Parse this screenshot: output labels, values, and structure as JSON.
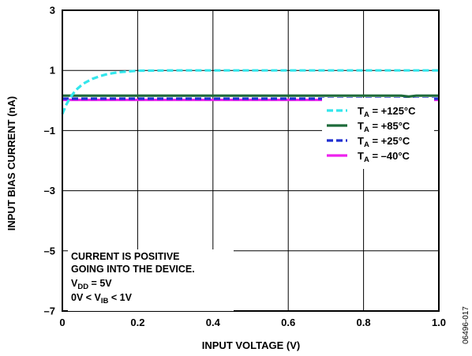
{
  "chart_data": {
    "type": "line",
    "xlabel": "INPUT VOLTAGE (V)",
    "ylabel": "INPUT BIAS CURRENT (nA)",
    "xlim": [
      0,
      1.0
    ],
    "ylim": [
      -7,
      3
    ],
    "x_ticks": [
      {
        "value": 0,
        "label": "0"
      },
      {
        "value": 0.2,
        "label": "0.2"
      },
      {
        "value": 0.4,
        "label": "0.4"
      },
      {
        "value": 0.6,
        "label": "0.6"
      },
      {
        "value": 0.8,
        "label": "0.8"
      },
      {
        "value": 1.0,
        "label": "1.0"
      }
    ],
    "y_ticks": [
      {
        "value": 3,
        "label": "3"
      },
      {
        "value": 1,
        "label": "1"
      },
      {
        "value": -1,
        "label": "–1"
      },
      {
        "value": -3,
        "label": "–3"
      },
      {
        "value": -5,
        "label": "–5"
      },
      {
        "value": -7,
        "label": "–7"
      }
    ],
    "grid": true,
    "legend_position": "right",
    "series": [
      {
        "name": "TA = +125°C",
        "label_main": "T",
        "label_sub": "A",
        "label_rest": " = +125°C",
        "color": "#33e6ec",
        "dash": "dashed",
        "x": [
          0,
          0.01,
          0.02,
          0.03,
          0.04,
          0.05,
          0.06,
          0.08,
          0.1,
          0.12,
          0.15,
          0.2,
          0.3,
          0.4,
          0.5,
          0.6,
          0.7,
          0.8,
          0.9,
          1.0
        ],
        "y": [
          -0.45,
          -0.15,
          0.08,
          0.25,
          0.39,
          0.5,
          0.59,
          0.72,
          0.81,
          0.88,
          0.94,
          0.99,
          1.0,
          1.0,
          1.0,
          1.0,
          1.0,
          1.0,
          1.0,
          1.0
        ]
      },
      {
        "name": "TA = +85°C",
        "label_main": "T",
        "label_sub": "A",
        "label_rest": " = +85°C",
        "color": "#1e6b3a",
        "dash": "solid",
        "x": [
          0,
          0.2,
          0.4,
          0.6,
          0.8,
          0.9,
          0.92,
          0.94,
          1.0
        ],
        "y": [
          0.16,
          0.16,
          0.16,
          0.16,
          0.16,
          0.16,
          0.13,
          0.16,
          0.16
        ]
      },
      {
        "name": "TA = +25°C",
        "label_main": "T",
        "label_sub": "A",
        "label_rest": " = +25°C",
        "color": "#1f2fd1",
        "dash": "dashed",
        "x": [
          0,
          0.2,
          0.4,
          0.6,
          0.8,
          1.0
        ],
        "y": [
          0.06,
          0.06,
          0.06,
          0.06,
          0.06,
          0.06
        ]
      },
      {
        "name": "TA = –40°C",
        "label_main": "T",
        "label_sub": "A",
        "label_rest": " = –40°C",
        "color": "#ee22ee",
        "dash": "solid",
        "x": [
          0,
          0.2,
          0.4,
          0.6,
          0.8,
          1.0
        ],
        "y": [
          0.02,
          0.02,
          0.02,
          0.02,
          0.02,
          0.02
        ]
      }
    ],
    "annotation": {
      "line1": "CURRENT IS POSITIVE",
      "line2": "GOING INTO THE DEVICE.",
      "line3_main": "V",
      "line3_sub": "DD",
      "line3_rest": " = 5V",
      "line4_a": "0V < V",
      "line4_sub": "IB",
      "line4_b": " < 1V"
    },
    "figure_code": "06496-017"
  }
}
